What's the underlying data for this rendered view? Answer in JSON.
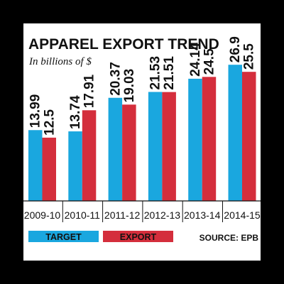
{
  "chart_data": {
    "type": "bar",
    "title": "APPAREL EXPORT TREND",
    "subtitle": "In billions of $",
    "categories": [
      "2009-10",
      "2010-11",
      "2011-12",
      "2012-13",
      "2013-14",
      "2014-15"
    ],
    "series": [
      {
        "name": "TARGET",
        "values": [
          13.99,
          13.74,
          20.37,
          21.53,
          24.14,
          26.9
        ],
        "labels": [
          "13.99",
          "13.74",
          "20.37",
          "21.53",
          "24.14",
          "26.9"
        ],
        "color": "#1aa7df"
      },
      {
        "name": "EXPORT",
        "values": [
          12.5,
          17.91,
          19.03,
          21.51,
          24.5,
          25.5
        ],
        "labels": [
          "12.5",
          "17.91",
          "19.03",
          "21.51",
          "24.5",
          "25.5"
        ],
        "color": "#d42e3c"
      }
    ],
    "ylim": [
      0,
      42
    ],
    "source": "SOURCE: EPB",
    "legend_position": "bottom",
    "grid": false
  },
  "colors": {
    "background": "#ffffff",
    "text": "#111111",
    "baseline": "#111111"
  }
}
